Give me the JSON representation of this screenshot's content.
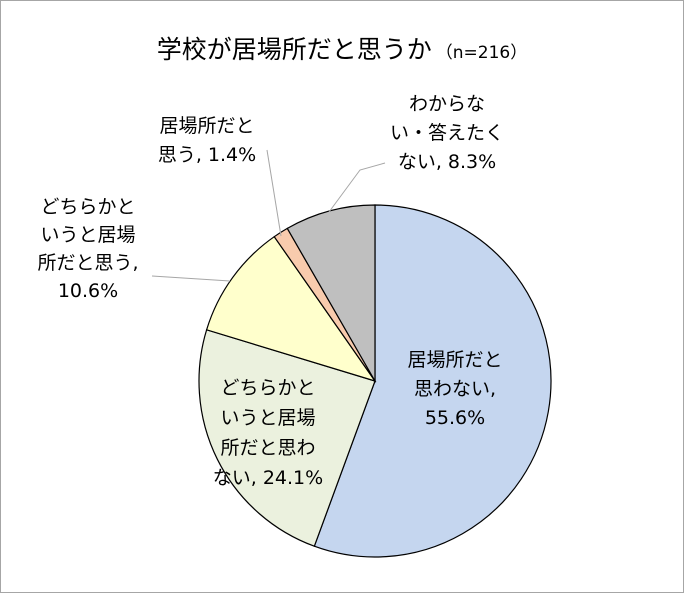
{
  "chart_data": {
    "type": "pie",
    "title": "学校が居場所だと思うか",
    "subtitle": "（n=216）",
    "slices": [
      {
        "label": "居場所だと思わない",
        "value": 55.6,
        "color": "#c5d6ef"
      },
      {
        "label": "どちらかというと居場所だと思わない",
        "value": 24.1,
        "color": "#ebf1de"
      },
      {
        "label": "どちらかというと居場所だと思う",
        "value": 10.6,
        "color": "#ffffcc"
      },
      {
        "label": "居場所だと思う",
        "value": 1.4,
        "color": "#f8cbad"
      },
      {
        "label": "わからない・答えたくない",
        "value": 8.3,
        "color": "#bfbfbf"
      }
    ],
    "data_labels": [
      [
        "居場所だと",
        "思わない,",
        "55.6%"
      ],
      [
        "どちらかと",
        "いうと居場",
        "所だと思わ",
        "ない, 24.1%"
      ],
      [
        "どちらかと",
        "いうと居場",
        "所だと思う,",
        "10.6%"
      ],
      [
        "居場所だと",
        "思う, 1.4%"
      ],
      [
        "わからな",
        "い・答えたく",
        "ない, 8.3%"
      ]
    ],
    "legend": "none"
  }
}
